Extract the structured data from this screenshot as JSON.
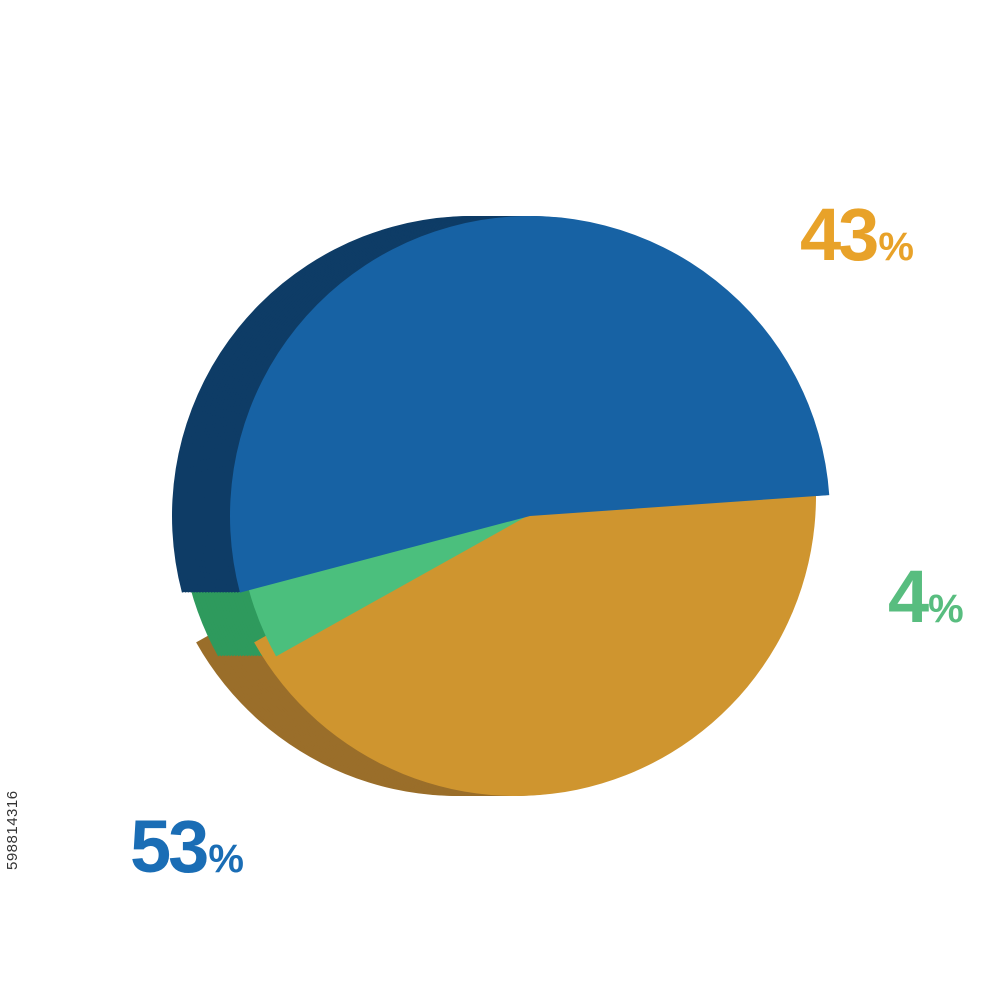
{
  "chart_data": {
    "type": "pie",
    "style": "3d-exploded",
    "title": "",
    "slices": [
      {
        "key": "orange",
        "value": 43,
        "label": "43",
        "unit": "%",
        "color": "#CF952F",
        "side_color": "#9A6E2A",
        "label_color": "#E8A229"
      },
      {
        "key": "green",
        "value": 4,
        "label": "4",
        "unit": "%",
        "color": "#4BBF7D",
        "side_color": "#2E9A5D",
        "label_color": "#58BD7F"
      },
      {
        "key": "blue",
        "value": 53,
        "label": "53",
        "unit": "%",
        "color": "#1762A4",
        "side_color": "#0E3C66",
        "label_color": "#1A6DB5"
      }
    ]
  },
  "stock_id": "598814316"
}
